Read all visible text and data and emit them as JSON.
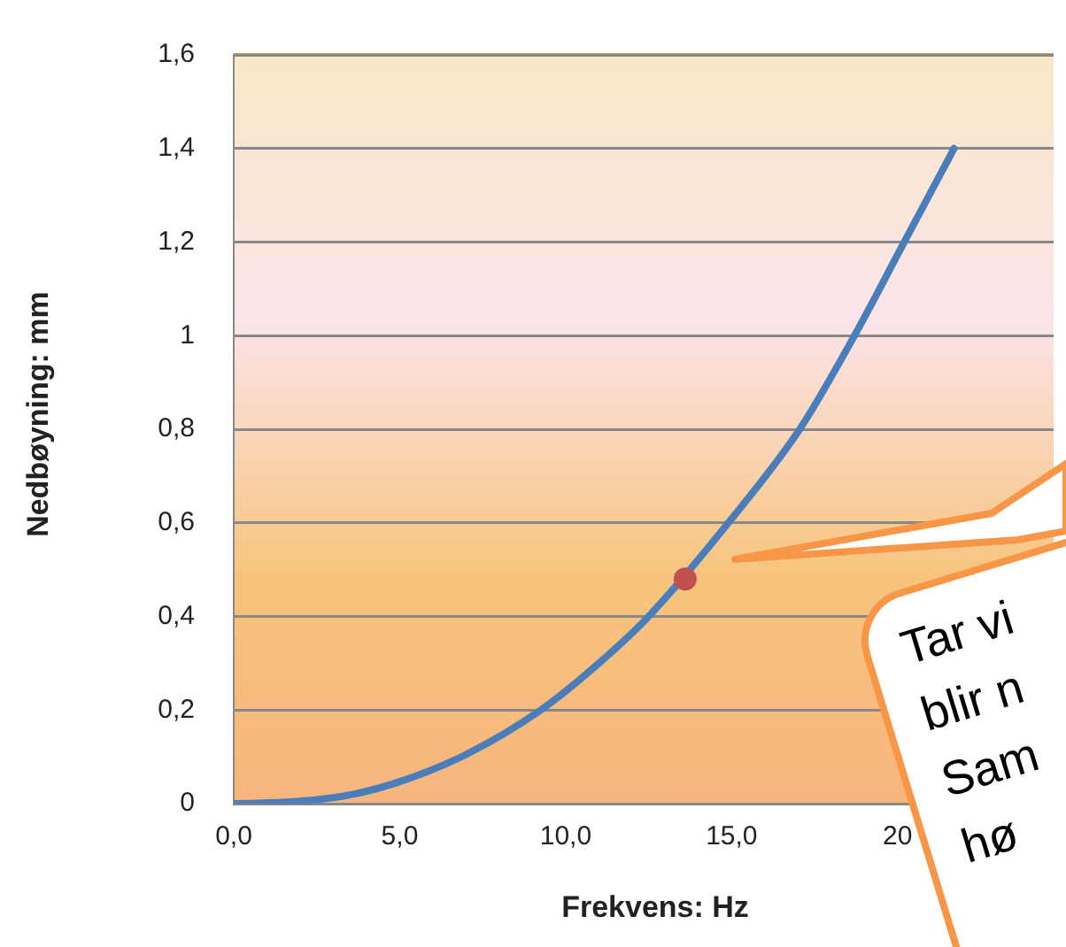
{
  "chart_data": {
    "type": "line",
    "xlabel": "Frekvens: Hz",
    "ylabel": "Nedbøyning: mm",
    "xlim": [
      0,
      24.7
    ],
    "ylim": [
      0,
      1.6
    ],
    "xticks": [
      {
        "value": 0,
        "label": "0,0"
      },
      {
        "value": 5,
        "label": "5,0"
      },
      {
        "value": 10,
        "label": "10,0"
      },
      {
        "value": 15,
        "label": "15,0"
      },
      {
        "value": 20,
        "label": "20"
      }
    ],
    "yticks": [
      0,
      {
        "value": 0.2,
        "label": "0,2"
      },
      {
        "value": 0.4,
        "label": "0,4"
      },
      {
        "value": 0.6,
        "label": "0,6"
      },
      {
        "value": 0.8,
        "label": "0,8"
      },
      1,
      {
        "value": 1.2,
        "label": "1,2"
      },
      {
        "value": 1.4,
        "label": "1,4"
      },
      {
        "value": 1.6,
        "label": "1,6"
      }
    ],
    "grid": "y",
    "line_style": "solid",
    "series": [
      {
        "color": "#4a7ebb",
        "marker": "none",
        "x": [
          0,
          2,
          3.6,
          5,
          7,
          9.25,
          11,
          12.5,
          14.9,
          17.05,
          18.7,
          20.2,
          21.7
        ],
        "values": [
          0,
          0.005,
          0.02,
          0.047,
          0.105,
          0.2,
          0.3,
          0.4,
          0.6,
          0.8,
          1.0,
          1.2,
          1.4
        ]
      },
      {
        "type": "scatter",
        "color": "#c0504d",
        "marker": "circle",
        "x": [
          13.6
        ],
        "values": [
          0.48
        ]
      }
    ],
    "annotations": [
      "Tar vi\nblir n\nSam\nhø"
    ]
  }
}
